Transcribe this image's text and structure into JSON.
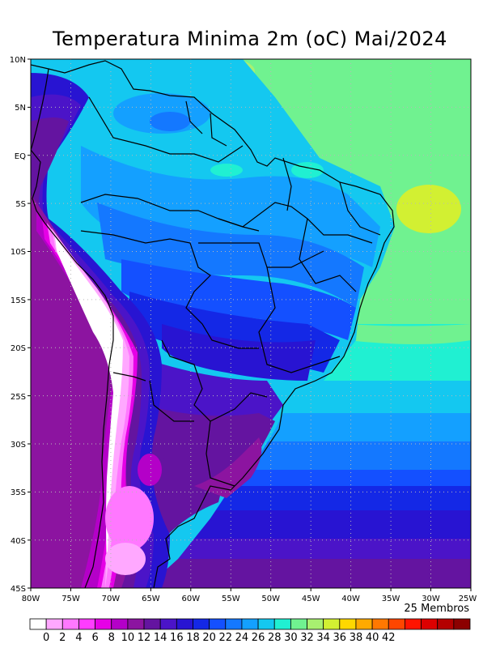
{
  "title": "Temperatura Minima 2m (oC) Mai/2024",
  "members_label": "25 Membros",
  "lat_labels": [
    "10N",
    "5N",
    "EQ",
    "5S",
    "10S",
    "15S",
    "20S",
    "25S",
    "30S",
    "35S",
    "40S",
    "45S"
  ],
  "lon_labels": [
    "80W",
    "75W",
    "70W",
    "65W",
    "60W",
    "55W",
    "50W",
    "45W",
    "40W",
    "35W",
    "30W",
    "25W"
  ],
  "colorbar": {
    "colors": [
      "#ffffff",
      "#ffa8ff",
      "#ff78ff",
      "#ff3cff",
      "#e600e6",
      "#b400c8",
      "#8c14a0",
      "#6414a0",
      "#4b14c8",
      "#2814d2",
      "#1428e6",
      "#1450ff",
      "#1478ff",
      "#14a0ff",
      "#14c8f0",
      "#20f0d2",
      "#70f290",
      "#a8f070",
      "#d2f032",
      "#ffd800",
      "#ffaa00",
      "#ff7800",
      "#ff4600",
      "#ff1400",
      "#dc0000",
      "#b40000",
      "#8c0000"
    ],
    "labels": [
      "0",
      "2",
      "4",
      "6",
      "8",
      "10",
      "12",
      "14",
      "16",
      "18",
      "20",
      "22",
      "24",
      "26",
      "28",
      "30",
      "32",
      "34",
      "36",
      "38",
      "40",
      "42"
    ]
  }
}
